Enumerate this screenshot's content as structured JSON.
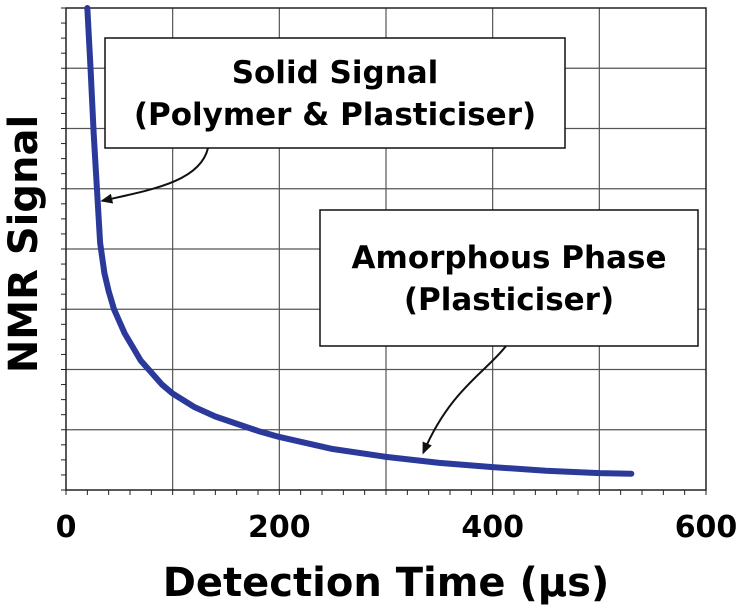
{
  "chart_data": {
    "type": "line",
    "xlabel": "Detection Time (µs)",
    "ylabel": "NMR Signal",
    "xlim": [
      0,
      600
    ],
    "ylim": [
      0,
      8
    ],
    "x_ticks": [
      0,
      200,
      400,
      600
    ],
    "y_tick_labels": false,
    "grid": true,
    "series": [
      {
        "color": "#2b3a9a",
        "x": [
          20,
          23,
          26,
          29,
          32,
          36,
          40,
          45,
          50,
          55,
          60,
          70,
          80,
          90,
          100,
          120,
          140,
          160,
          180,
          200,
          250,
          300,
          350,
          400,
          450,
          500,
          530
        ],
        "y": [
          8.0,
          7.0,
          5.9,
          5.0,
          4.1,
          3.6,
          3.3,
          3.0,
          2.8,
          2.6,
          2.45,
          2.15,
          1.95,
          1.75,
          1.6,
          1.38,
          1.22,
          1.1,
          0.98,
          0.88,
          0.68,
          0.55,
          0.45,
          0.38,
          0.32,
          0.28,
          0.27
        ]
      }
    ],
    "annotations": [
      {
        "lines": [
          "Solid Signal",
          "(Polymer & Plasticiser)"
        ],
        "arrow_to": [
          34,
          4.8
        ]
      },
      {
        "lines": [
          "Amorphous Phase",
          "(Plasticiser)"
        ],
        "arrow_to": [
          335,
          0.62
        ]
      }
    ]
  }
}
